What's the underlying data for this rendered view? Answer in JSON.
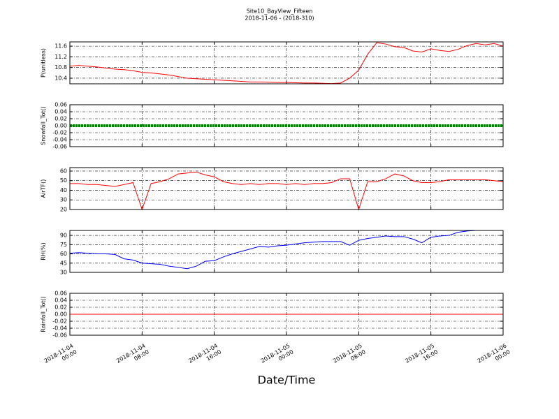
{
  "figure": {
    "title": "Site10_BayView_Fifteen",
    "subtitle": "2018-11-06 - (2018-310)",
    "x_label": "Date/Time",
    "xlim": [
      "2018-11-04 00:00",
      "2018-11-06 00:00"
    ],
    "xticks": [
      "2018-11-04 00:00",
      "2018-11-04 08:00",
      "2018-11-04 16:00",
      "2018-11-05 00:00",
      "2018-11-05 08:00",
      "2018-11-05 16:00",
      "2018-11-06 00:00"
    ],
    "x": [
      "2018-11-04 00:00",
      "2018-11-04 01:00",
      "2018-11-04 02:00",
      "2018-11-04 03:00",
      "2018-11-04 04:00",
      "2018-11-04 05:00",
      "2018-11-04 06:00",
      "2018-11-04 07:00",
      "2018-11-04 08:00",
      "2018-11-04 09:00",
      "2018-11-04 10:00",
      "2018-11-04 11:00",
      "2018-11-04 12:00",
      "2018-11-04 13:00",
      "2018-11-04 14:00",
      "2018-11-04 15:00",
      "2018-11-04 16:00",
      "2018-11-04 17:00",
      "2018-11-04 18:00",
      "2018-11-04 19:00",
      "2018-11-04 20:00",
      "2018-11-04 21:00",
      "2018-11-04 22:00",
      "2018-11-04 23:00",
      "2018-11-05 00:00",
      "2018-11-05 01:00",
      "2018-11-05 02:00",
      "2018-11-05 03:00",
      "2018-11-05 04:00",
      "2018-11-05 05:00",
      "2018-11-05 06:00",
      "2018-11-05 07:00",
      "2018-11-05 08:00",
      "2018-11-05 09:00",
      "2018-11-05 10:00",
      "2018-11-05 11:00",
      "2018-11-05 12:00",
      "2018-11-05 13:00",
      "2018-11-05 14:00",
      "2018-11-05 15:00",
      "2018-11-05 16:00",
      "2018-11-05 17:00",
      "2018-11-05 18:00",
      "2018-11-05 19:00",
      "2018-11-05 20:00",
      "2018-11-05 21:00",
      "2018-11-05 22:00",
      "2018-11-05 23:00",
      "2018-11-06 00:00"
    ]
  },
  "chart_data": [
    {
      "type": "line",
      "y_label": "P(unitless)",
      "color": "#ff0000",
      "grid": true,
      "ylim": [
        10.19,
        11.76
      ],
      "yticks": [
        10.4,
        10.8,
        11.2,
        11.6
      ],
      "values": [
        10.85,
        10.88,
        10.85,
        10.82,
        10.78,
        10.74,
        10.72,
        10.68,
        10.62,
        10.6,
        10.56,
        10.52,
        10.46,
        10.4,
        10.38,
        10.36,
        10.34,
        10.32,
        10.3,
        10.28,
        10.26,
        10.26,
        10.25,
        10.24,
        10.24,
        10.23,
        10.22,
        10.22,
        10.21,
        10.2,
        10.22,
        10.4,
        10.7,
        11.3,
        11.73,
        11.68,
        11.58,
        11.55,
        11.42,
        11.38,
        11.5,
        11.44,
        11.4,
        11.48,
        11.62,
        11.7,
        11.65,
        11.7,
        11.6
      ]
    },
    {
      "type": "line",
      "y_label": "Snowfall_Tot()",
      "color": "#008000",
      "markers": true,
      "grid": true,
      "ylim": [
        -0.06,
        0.06
      ],
      "yticks": [
        -0.06,
        -0.04,
        -0.02,
        {
          "value": 0,
          "label": "0.00"
        },
        0.02,
        0.04,
        0.06
      ],
      "values": [
        0,
        0,
        0,
        0,
        0,
        0,
        0,
        0,
        0,
        0,
        0,
        0,
        0,
        0,
        0,
        0,
        0,
        0,
        0,
        0,
        0,
        0,
        0,
        0,
        0,
        0,
        0,
        0,
        0,
        0,
        0,
        0,
        0,
        0,
        0,
        0,
        0,
        0,
        0,
        0,
        0,
        0,
        0,
        0,
        0,
        0,
        0,
        0,
        0
      ]
    },
    {
      "type": "line",
      "y_label": "AirTF()",
      "color": "#ff0000",
      "grid": true,
      "ylim": [
        20,
        63.6
      ],
      "yticks": [
        20,
        30,
        40,
        50,
        60
      ],
      "values": [
        47,
        47,
        46,
        46,
        45,
        44,
        46,
        48,
        20,
        47,
        49,
        52,
        57,
        58,
        59,
        56,
        54,
        49,
        47,
        46,
        47,
        46,
        47,
        47,
        46,
        47,
        46,
        47,
        47,
        48,
        52,
        52,
        20,
        49,
        49,
        52,
        57,
        55,
        50,
        48,
        48,
        49,
        51,
        51,
        51,
        51,
        51,
        50,
        49
      ]
    },
    {
      "type": "line",
      "y_label": "RH(%)",
      "color": "#0000ff",
      "grid": true,
      "ylim": [
        30,
        98
      ],
      "yticks": [
        30,
        45,
        60,
        75,
        90
      ],
      "values": [
        61,
        62,
        61,
        60,
        60,
        59,
        52,
        50,
        45,
        44,
        43,
        40,
        38,
        36,
        40,
        48,
        49,
        55,
        60,
        64,
        68,
        72,
        71,
        73,
        74,
        76,
        78,
        79,
        80,
        80,
        80,
        74,
        82,
        85,
        87,
        89,
        88,
        88,
        84,
        78,
        87,
        89,
        90,
        95,
        97,
        98,
        98,
        98,
        98
      ]
    },
    {
      "type": "line",
      "y_label": "Rainfall_Tot()",
      "color": "#ff0000",
      "grid": true,
      "ylim": [
        -0.06,
        0.06
      ],
      "yticks": [
        -0.06,
        -0.04,
        -0.02,
        {
          "value": 0,
          "label": "0.00"
        },
        0.02,
        0.04,
        0.06
      ],
      "values": [
        0,
        0,
        0,
        0,
        0,
        0,
        0,
        0,
        0,
        0,
        0,
        0,
        0,
        0,
        0,
        0,
        0,
        0,
        0,
        0,
        0,
        0,
        0,
        0,
        0,
        0,
        0,
        0,
        0,
        0,
        0,
        0,
        0,
        0,
        0,
        0,
        0,
        0,
        0,
        0,
        0,
        0,
        0,
        0,
        0,
        0,
        0,
        0,
        0
      ]
    }
  ]
}
